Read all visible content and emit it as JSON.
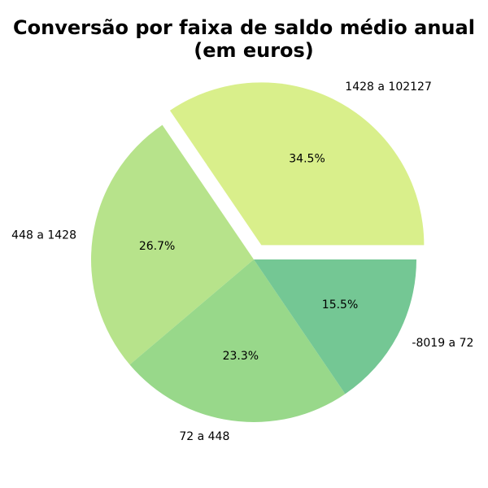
{
  "chart_data": {
    "type": "pie",
    "title_lines": [
      "Conversão por faixa de saldo médio anual",
      "(em euros)"
    ],
    "slices": [
      {
        "label": "1428 a 102127",
        "percent": 34.5,
        "percent_label": "34.5%",
        "color": "#d9ef8b",
        "exploded": true
      },
      {
        "label": "448 a 1428",
        "percent": 26.7,
        "percent_label": "26.7%",
        "color": "#b7e38b",
        "exploded": false
      },
      {
        "label": "72 a 448",
        "percent": 23.3,
        "percent_label": "23.3%",
        "color": "#98d88a",
        "exploded": false
      },
      {
        "label": "-8019 a 72",
        "percent": 15.5,
        "percent_label": "15.5%",
        "color": "#74c794",
        "exploded": false
      }
    ],
    "start_angle_deg": 0,
    "direction": "counterclockwise"
  }
}
